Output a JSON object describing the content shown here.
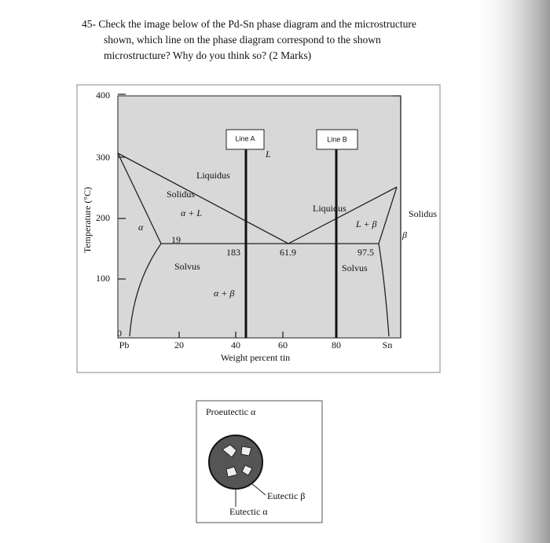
{
  "question": {
    "lines": [
      "45- Check the image below of the Pd-Sn phase diagram and the microstructure",
      "shown, which line on the phase diagram correspond to the shown",
      "microstructure? Why do you think so? (2 Marks)"
    ]
  },
  "diagram": {
    "y_axis": {
      "label": "Temperature (°C)",
      "ticks": [
        "400",
        "300",
        "200",
        "100",
        "0"
      ]
    },
    "x_axis": {
      "label": "Weight percent tin",
      "ticks": [
        "Pb",
        "20",
        "40",
        "60",
        "80",
        "Sn"
      ]
    },
    "lines": [
      "Line A",
      "Line B"
    ],
    "regions": {
      "liquid": "L",
      "liquidus_left": "Liquidus",
      "solidus_left": "Solidus",
      "alpha_liquid": "α + L",
      "liquidus_right": "Liquidus",
      "beta_liquid": "L + β",
      "solidus_right": "Solidus",
      "beta": "β",
      "alpha": "α",
      "alpha_beta": "α + β",
      "solvus_left": "Solvus",
      "solvus_right": "Solvus"
    },
    "eutectic": {
      "alpha_comp": "19",
      "temperature": "183",
      "eutectic_comp": "61.9",
      "beta_comp": "97.5"
    }
  },
  "microstructure": {
    "proeutectic": "Proeutectic α",
    "eutectic_beta": "Eutectic β",
    "eutectic_alpha": "Eutectic α"
  }
}
